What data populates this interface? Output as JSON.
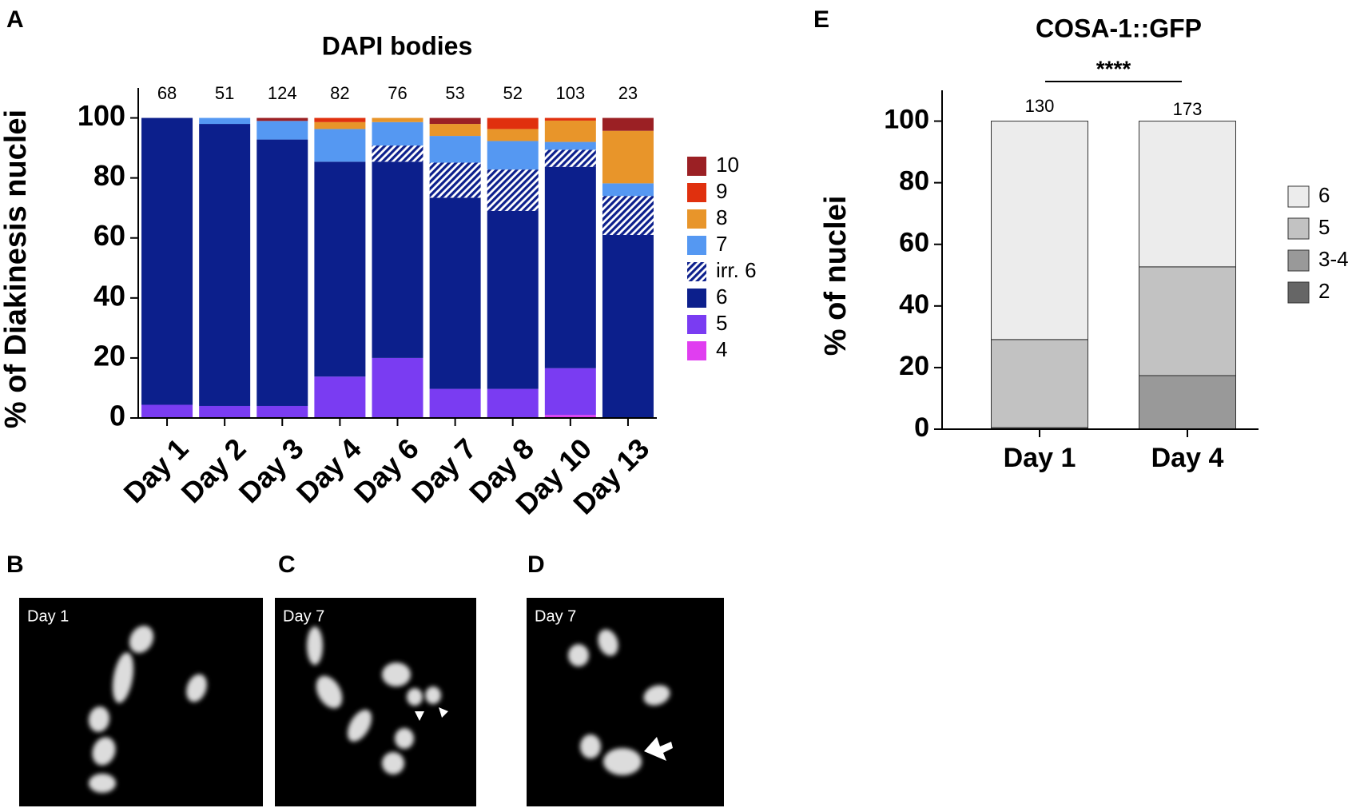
{
  "panel_labels": [
    "A",
    "B",
    "C",
    "D",
    "E"
  ],
  "micrographs": [
    "Day 1",
    "Day 7",
    "Day 7"
  ],
  "chart_data": [
    {
      "type": "stacked_bar",
      "title": "DAPI bodies",
      "y_label": "% of Diakinesis nuclei",
      "categories": [
        "Day 1",
        "Day 2",
        "Day 3",
        "Day 4",
        "Day 6",
        "Day 7",
        "Day 8",
        "Day 10",
        "Day 13"
      ],
      "n_values": [
        68,
        51,
        124,
        82,
        76,
        53,
        52,
        103,
        23
      ],
      "ylim": [
        0,
        110
      ],
      "yticks": [
        0,
        20,
        40,
        60,
        80,
        100
      ],
      "legend": "right",
      "series": [
        {
          "name": "4",
          "color": "#e03ef0",
          "values": [
            0,
            0,
            0,
            0,
            0,
            0,
            0,
            1,
            0
          ]
        },
        {
          "name": "5",
          "color": "#7a3cf2",
          "values": [
            4.4,
            4,
            4,
            13.8,
            20,
            9.7,
            9.7,
            15.6,
            0
          ]
        },
        {
          "name": "6",
          "color": "#0c1f8c",
          "values": [
            95.6,
            94,
            88.8,
            71.6,
            65.4,
            63.7,
            59.3,
            67.1,
            61
          ]
        },
        {
          "name": "irr. 6",
          "color": "#0c1f8c",
          "hatch": true,
          "values": [
            0,
            0,
            0,
            0,
            5.4,
            11.7,
            13.8,
            5.7,
            13
          ]
        },
        {
          "name": "7",
          "color": "#5598f2",
          "values": [
            0,
            2,
            6.2,
            10.9,
            7.8,
            8.9,
            9.5,
            2.6,
            4.2
          ]
        },
        {
          "name": "8",
          "color": "#e8952a",
          "values": [
            0,
            0,
            0,
            2.3,
            1.4,
            4,
            4,
            7.1,
            17.5
          ]
        },
        {
          "name": "9",
          "color": "#e0300e",
          "values": [
            0,
            0,
            0,
            1.4,
            0,
            0,
            3.7,
            0.9,
            0
          ]
        },
        {
          "name": "10",
          "color": "#9b2024",
          "values": [
            0,
            0,
            1,
            0,
            0,
            2,
            0,
            0,
            4.3
          ]
        }
      ]
    },
    {
      "type": "stacked_bar",
      "title": "COSA-1::GFP",
      "y_label": "% of nuclei",
      "significance": "****",
      "categories": [
        "Day 1",
        "Day 4"
      ],
      "n_values": [
        130,
        173
      ],
      "ylim": [
        0,
        110
      ],
      "yticks": [
        0,
        20,
        40,
        60,
        80,
        100
      ],
      "legend": "right",
      "series": [
        {
          "name": "2",
          "color": "#666666",
          "values": [
            0.5,
            0
          ]
        },
        {
          "name": "3-4",
          "color": "#999999",
          "values": [
            0,
            17.4
          ]
        },
        {
          "name": "5",
          "color": "#c2c2c2",
          "values": [
            28.6,
            35.3
          ]
        },
        {
          "name": "6",
          "color": "#ececec",
          "values": [
            70.9,
            47.3
          ]
        }
      ]
    }
  ]
}
